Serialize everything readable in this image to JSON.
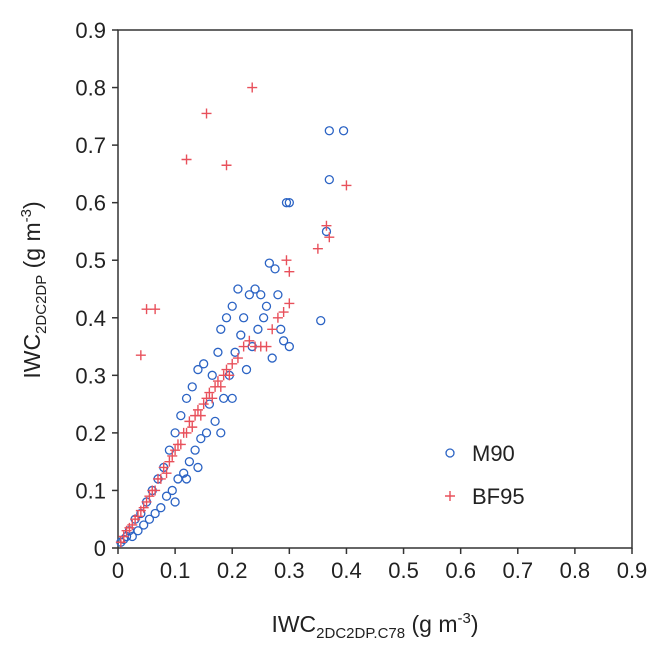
{
  "chart_data": {
    "type": "scatter",
    "x_label": {
      "main": "IWC",
      "sub": "2DC2DP.C78",
      "unit": " (g m",
      "sup": "-3",
      "close": ")"
    },
    "y_label": {
      "main": "IWC",
      "sub": "2DC2DP",
      "unit": " (g m",
      "sup": "-3",
      "close": ")"
    },
    "xlim": [
      0,
      0.9
    ],
    "ylim": [
      0,
      0.9
    ],
    "xticks": [
      0,
      0.1,
      0.2,
      0.3,
      0.4,
      0.5,
      0.6,
      0.7,
      0.8,
      0.9
    ],
    "yticks": [
      0,
      0.1,
      0.2,
      0.3,
      0.4,
      0.5,
      0.6,
      0.7,
      0.8,
      0.9
    ],
    "legend_position": "lower right",
    "series": [
      {
        "name": "M90",
        "color": "#2b63c4",
        "marker": "circle",
        "x": [
          0.005,
          0.01,
          0.015,
          0.02,
          0.025,
          0.03,
          0.035,
          0.04,
          0.045,
          0.05,
          0.055,
          0.06,
          0.065,
          0.07,
          0.075,
          0.08,
          0.085,
          0.09,
          0.095,
          0.1,
          0.105,
          0.11,
          0.115,
          0.12,
          0.125,
          0.13,
          0.135,
          0.14,
          0.145,
          0.15,
          0.155,
          0.16,
          0.165,
          0.17,
          0.175,
          0.18,
          0.185,
          0.19,
          0.195,
          0.2,
          0.205,
          0.21,
          0.215,
          0.22,
          0.225,
          0.23,
          0.235,
          0.24,
          0.245,
          0.25,
          0.255,
          0.26,
          0.265,
          0.275,
          0.28,
          0.285,
          0.29,
          0.3,
          0.295,
          0.3,
          0.355,
          0.365,
          0.37,
          0.37,
          0.395,
          0.27,
          0.2,
          0.18,
          0.14,
          0.12,
          0.1
        ],
        "values": [
          0.01,
          0.015,
          0.02,
          0.03,
          0.02,
          0.05,
          0.03,
          0.06,
          0.04,
          0.08,
          0.05,
          0.1,
          0.06,
          0.12,
          0.07,
          0.14,
          0.09,
          0.17,
          0.1,
          0.2,
          0.12,
          0.23,
          0.13,
          0.26,
          0.15,
          0.28,
          0.17,
          0.31,
          0.19,
          0.32,
          0.2,
          0.25,
          0.3,
          0.22,
          0.34,
          0.38,
          0.26,
          0.4,
          0.3,
          0.42,
          0.34,
          0.45,
          0.37,
          0.4,
          0.31,
          0.44,
          0.35,
          0.45,
          0.38,
          0.44,
          0.4,
          0.42,
          0.495,
          0.485,
          0.44,
          0.38,
          0.36,
          0.35,
          0.6,
          0.6,
          0.395,
          0.55,
          0.64,
          0.725,
          0.725,
          0.33,
          0.26,
          0.2,
          0.14,
          0.12,
          0.08
        ]
      },
      {
        "name": "BF95",
        "color": "#e8505b",
        "marker": "plus",
        "x": [
          0.005,
          0.01,
          0.015,
          0.02,
          0.025,
          0.03,
          0.035,
          0.04,
          0.045,
          0.05,
          0.055,
          0.06,
          0.065,
          0.07,
          0.075,
          0.08,
          0.085,
          0.09,
          0.095,
          0.1,
          0.105,
          0.11,
          0.115,
          0.12,
          0.125,
          0.13,
          0.135,
          0.14,
          0.145,
          0.15,
          0.155,
          0.16,
          0.165,
          0.17,
          0.175,
          0.18,
          0.185,
          0.19,
          0.195,
          0.2,
          0.21,
          0.22,
          0.23,
          0.24,
          0.25,
          0.26,
          0.27,
          0.28,
          0.29,
          0.3,
          0.295,
          0.3,
          0.35,
          0.365,
          0.37,
          0.4,
          0.04,
          0.05,
          0.065,
          0.12,
          0.155,
          0.19,
          0.235
        ],
        "values": [
          0.01,
          0.02,
          0.03,
          0.035,
          0.04,
          0.05,
          0.055,
          0.065,
          0.07,
          0.08,
          0.09,
          0.1,
          0.1,
          0.12,
          0.12,
          0.14,
          0.13,
          0.15,
          0.16,
          0.17,
          0.18,
          0.18,
          0.2,
          0.2,
          0.22,
          0.21,
          0.23,
          0.24,
          0.23,
          0.25,
          0.26,
          0.27,
          0.26,
          0.28,
          0.29,
          0.28,
          0.3,
          0.31,
          0.3,
          0.32,
          0.33,
          0.35,
          0.36,
          0.35,
          0.35,
          0.35,
          0.38,
          0.4,
          0.41,
          0.425,
          0.5,
          0.48,
          0.52,
          0.56,
          0.54,
          0.63,
          0.335,
          0.415,
          0.415,
          0.675,
          0.755,
          0.665,
          0.8
        ]
      }
    ]
  }
}
